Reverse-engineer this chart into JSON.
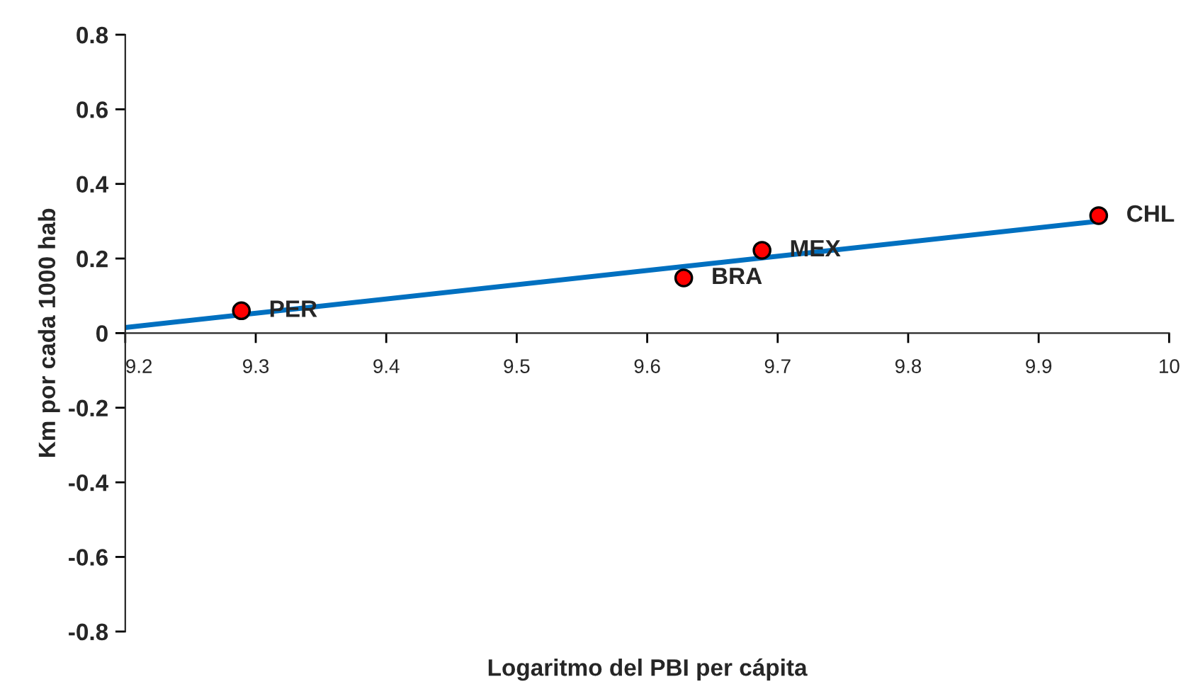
{
  "chart_data": {
    "type": "scatter",
    "xlabel": "Logaritmo del PBI per cápita",
    "ylabel": "Km por cada 1000 hab",
    "xlim": [
      9.2,
      10
    ],
    "xticks": [
      9.2,
      9.3,
      9.4,
      9.5,
      9.6,
      9.7,
      9.8,
      9.9,
      10
    ],
    "ylim": [
      -0.8,
      0.8
    ],
    "yticks": [
      -0.8,
      -0.6,
      -0.4,
      -0.2,
      0,
      0.2,
      0.4,
      0.6,
      0.8
    ],
    "grid": false,
    "legend": false,
    "series": [
      {
        "marker": "circle",
        "color": "#ff0000",
        "x": [
          9.289,
          9.628,
          9.688,
          9.946
        ],
        "values": [
          0.06,
          0.148,
          0.222,
          0.315
        ]
      },
      {
        "type": "line",
        "marker": "none",
        "color": "#0070c0",
        "x": [
          9.2,
          9.946
        ],
        "values": [
          0.015,
          0.3
        ]
      }
    ],
    "annotations": [
      {
        "text": "PER",
        "x": 9.289,
        "y": 0.06
      },
      {
        "text": "BRA",
        "x": 9.628,
        "y": 0.148
      },
      {
        "text": "MEX",
        "x": 9.688,
        "y": 0.222
      },
      {
        "text": "CHL",
        "x": 9.946,
        "y": 0.315
      }
    ]
  }
}
